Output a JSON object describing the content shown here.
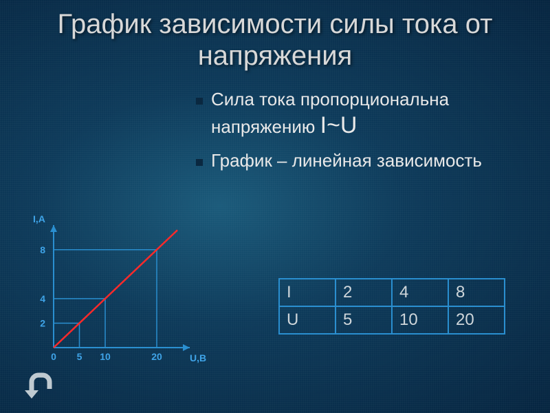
{
  "title": "График зависимости силы тока от напряжения",
  "bullets": [
    {
      "text": "Сила тока пропорциональна напряжению",
      "formula": "I~U"
    },
    {
      "text": "График – линейная зависимость",
      "formula": ""
    }
  ],
  "chart": {
    "type": "line",
    "x_axis_label": "U,В",
    "y_axis_label": "I,А",
    "x_ticks": [
      0,
      5,
      10,
      20
    ],
    "y_ticks": [
      2,
      4,
      8
    ],
    "xlim": [
      0,
      24
    ],
    "ylim": [
      0,
      9
    ],
    "series": {
      "x": [
        0,
        5,
        10,
        20,
        24
      ],
      "y": [
        0,
        2,
        4,
        8,
        9.6
      ]
    },
    "axis_color": "#2a8fd0",
    "line_color": "#ff2a2a",
    "reference_line_color": "#2a8fd0",
    "tick_label_color": "#3fa4e8",
    "line_width": 2.5
  },
  "table": {
    "rows": [
      [
        "I",
        "2",
        "4",
        "8"
      ],
      [
        "U",
        "5",
        "10",
        "20"
      ]
    ],
    "border_color": "#2a8fd0",
    "text_color": "#cfd6da",
    "cell_fontsize": 24
  },
  "back_icon_color": "#bfcad1"
}
